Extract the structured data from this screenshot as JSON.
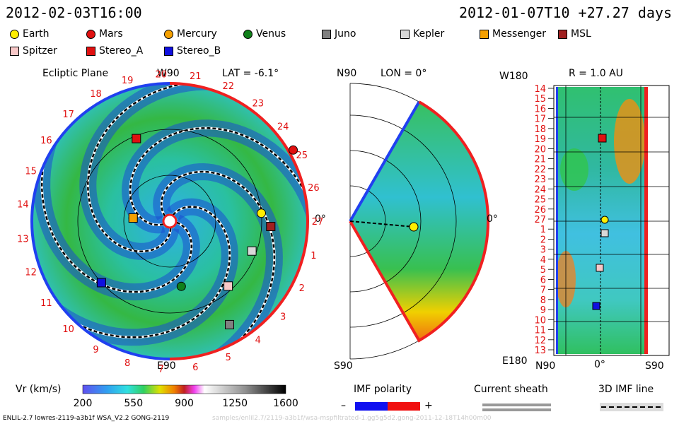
{
  "header": {
    "left_time": "2012-02-03T16:00",
    "right_time": "2012-01-07T10 +27.27 days"
  },
  "legend": [
    {
      "label": "Earth",
      "color": "#ffee00",
      "shape": "circle"
    },
    {
      "label": "Mars",
      "color": "#e01010",
      "shape": "circle"
    },
    {
      "label": "Mercury",
      "color": "#f5a000",
      "shape": "circle"
    },
    {
      "label": "Venus",
      "color": "#10801a",
      "shape": "circle"
    },
    {
      "label": "Juno",
      "color": "#808080",
      "shape": "square"
    },
    {
      "label": "Kepler",
      "color": "#d8d8d8",
      "shape": "square"
    },
    {
      "label": "Messenger",
      "color": "#f5a000",
      "shape": "square"
    },
    {
      "label": "MSL",
      "color": "#a02020",
      "shape": "square"
    },
    {
      "label": "Spitzer",
      "color": "#f8c8c8",
      "shape": "square"
    },
    {
      "label": "Stereo_A",
      "color": "#e01010",
      "shape": "square"
    },
    {
      "label": "Stereo_B",
      "color": "#1010e0",
      "shape": "square"
    }
  ],
  "panels": {
    "ecliptic": {
      "title": "Ecliptic Plane",
      "top_label": "W90",
      "bottom_label": "E90",
      "right_label": "0°",
      "lat_label": "LAT = -6.1°"
    },
    "meridional": {
      "top_label": "N90",
      "bottom_label": "S90",
      "right_label": "0°",
      "lon_label": "LON = 0°"
    },
    "synoptic": {
      "top_left_label": "W180",
      "bottom_left_label": "E180",
      "title": "R = 1.0 AU",
      "x_labels": [
        "N90",
        "0°",
        "S90"
      ]
    }
  },
  "chart_data": [
    {
      "type": "polar",
      "name_shown": "Ecliptic Plane",
      "carrington_labels": [
        "19",
        "20",
        "21",
        "22",
        "23",
        "24",
        "25",
        "26",
        "27",
        "1",
        "2",
        "3",
        "4",
        "5",
        "6",
        "7",
        "8",
        "9",
        "10",
        "11",
        "12",
        "13",
        "14",
        "15",
        "16",
        "17",
        "18"
      ],
      "rings_au": [
        0.5,
        1.0,
        1.5
      ],
      "bodies": [
        {
          "name": "Earth",
          "r_au": 1.0,
          "angle_deg": 5
        },
        {
          "name": "Mars",
          "r_au": 1.55,
          "angle_deg": 30
        },
        {
          "name": "Mercury",
          "r_au": 0.4,
          "angle_deg": 175
        },
        {
          "name": "Venus",
          "r_au": 0.72,
          "angle_deg": 280
        },
        {
          "name": "Juno",
          "r_au": 1.3,
          "angle_deg": 300
        },
        {
          "name": "Kepler",
          "r_au": 0.95,
          "angle_deg": 340
        },
        {
          "name": "Messenger",
          "r_au": 0.4,
          "angle_deg": 175
        },
        {
          "name": "MSL",
          "r_au": 1.1,
          "angle_deg": 357
        },
        {
          "name": "Spitzer",
          "r_au": 0.95,
          "angle_deg": 312
        },
        {
          "name": "Stereo_A",
          "r_au": 0.97,
          "angle_deg": 112
        },
        {
          "name": "Stereo_B",
          "r_au": 1.0,
          "angle_deg": 222
        }
      ]
    },
    {
      "type": "heatmap",
      "name_shown": "R = 1.0 AU",
      "y_ticks": [
        "14",
        "15",
        "16",
        "17",
        "18",
        "19",
        "20",
        "21",
        "22",
        "23",
        "24",
        "25",
        "26",
        "27",
        "1",
        "2",
        "3",
        "4",
        "5",
        "6",
        "7",
        "8",
        "9",
        "10",
        "11",
        "12",
        "13"
      ],
      "x_ticks": [
        "N90",
        "0°",
        "S90"
      ]
    }
  ],
  "colorbar": {
    "label": "Vr (km/s)",
    "ticks": [
      "200",
      "550",
      "900",
      "1250",
      "1600"
    ],
    "range": [
      200,
      1600
    ]
  },
  "polarity": {
    "label": "IMF polarity",
    "minus": "–",
    "plus": "+"
  },
  "sheath": {
    "label": "Current sheath"
  },
  "imf_line": {
    "label": "3D IMF line"
  },
  "footer": {
    "left": "ENLIL-2.7 lowres-2119-a3b1f WSA_V2.2 GONG-2119",
    "center": "samples/enlil2.7/2119-a3b1f/wsa-mspfiltrated-1.gg5g5d2.gong-2011-12-18T14h00m00"
  }
}
